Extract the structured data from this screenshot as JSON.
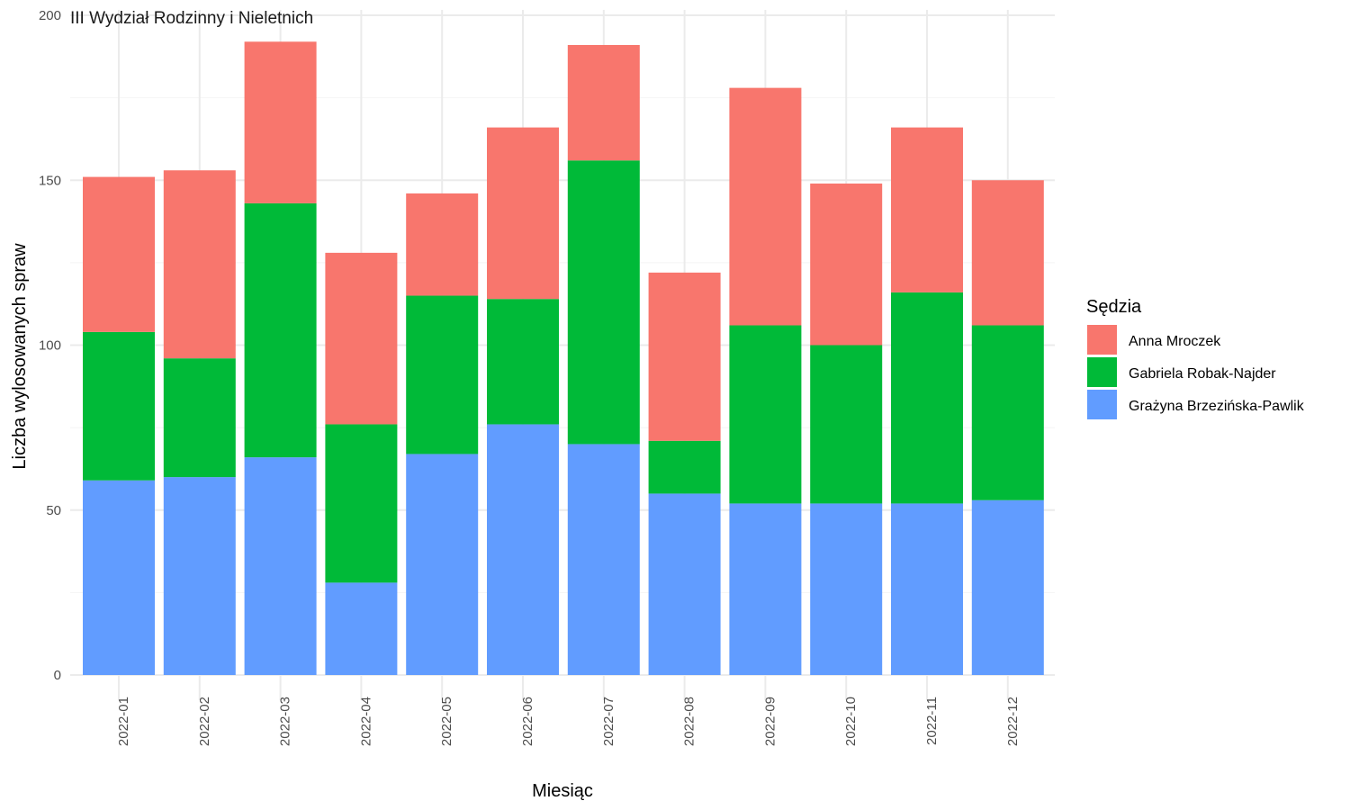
{
  "chart_data": {
    "type": "bar",
    "stacked": true,
    "title": "III Wydział Rodzinny i Nieletnich",
    "xlabel": "Miesiąc",
    "ylabel": "Liczba wylosowanych spraw",
    "ylim": [
      0,
      200
    ],
    "yticks": [
      0,
      50,
      100,
      150,
      200
    ],
    "grid": true,
    "legend": {
      "title": "Sędzia",
      "position": "right"
    },
    "categories": [
      "2022-01",
      "2022-02",
      "2022-03",
      "2022-04",
      "2022-05",
      "2022-06",
      "2022-07",
      "2022-08",
      "2022-09",
      "2022-10",
      "2022-11",
      "2022-12"
    ],
    "series": [
      {
        "name": "Anna Mroczek",
        "color": "#F8766D",
        "values": [
          47,
          57,
          49,
          52,
          31,
          52,
          35,
          51,
          72,
          49,
          50,
          44
        ]
      },
      {
        "name": "Gabriela Robak-Najder",
        "color": "#00BA38",
        "values": [
          45,
          36,
          77,
          48,
          48,
          38,
          86,
          16,
          54,
          48,
          64,
          53
        ]
      },
      {
        "name": "Grażyna Brzezińska-Pawlik",
        "color": "#619CFF",
        "values": [
          59,
          60,
          66,
          28,
          67,
          76,
          70,
          55,
          52,
          52,
          52,
          53
        ]
      }
    ]
  }
}
